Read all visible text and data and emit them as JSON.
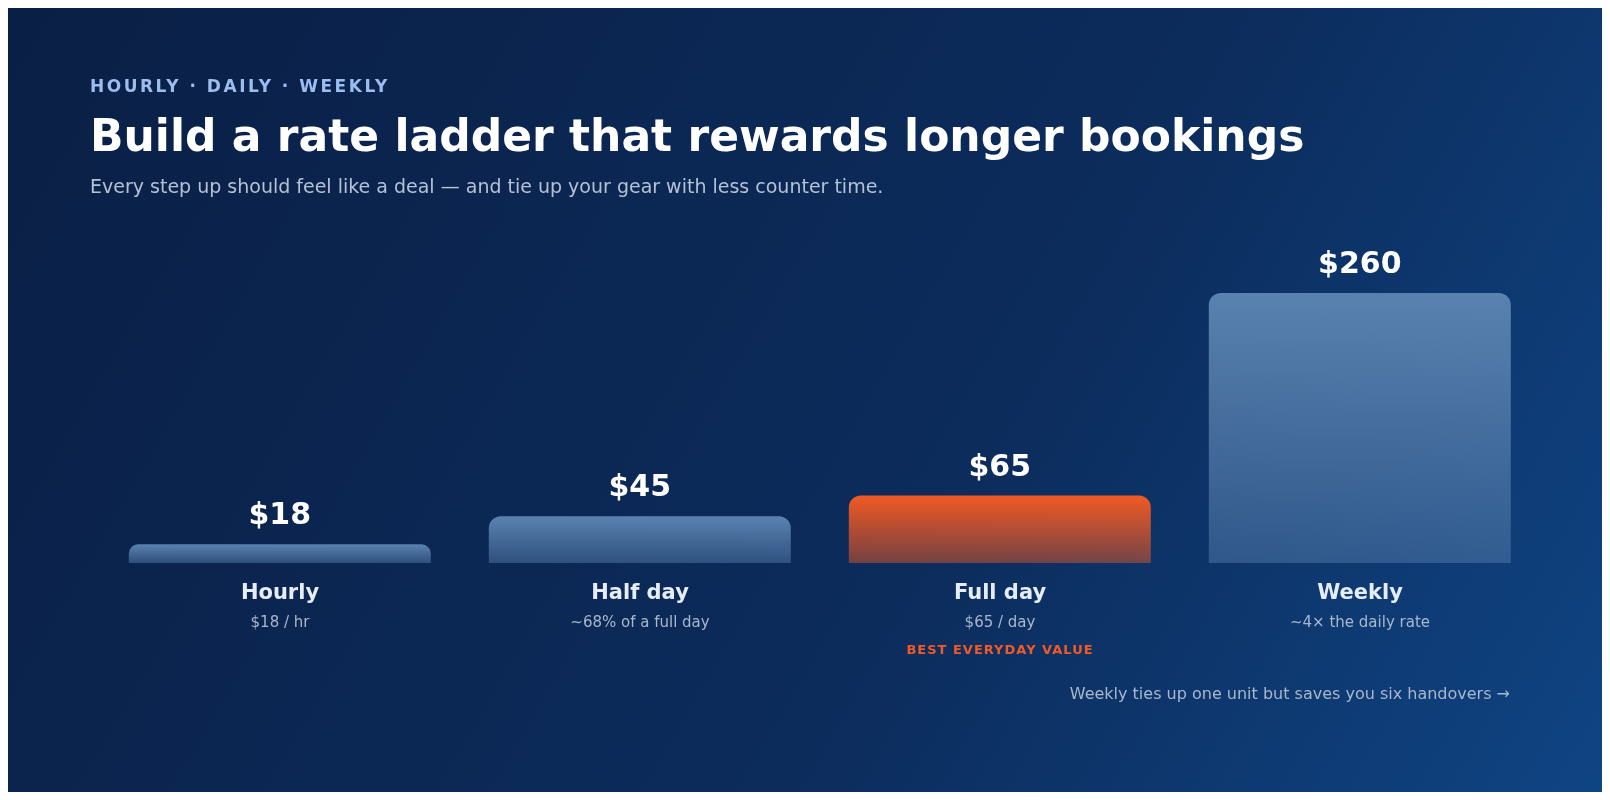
{
  "chart_data": {
    "type": "bar",
    "title": "Build a rate ladder that rewards longer bookings",
    "subtitle": "Every step up should feel like a deal — and tie up your gear with less counter time.",
    "categories": [
      "Hourly",
      "Half day",
      "Full day",
      "Weekly"
    ],
    "values": [
      18,
      45,
      65,
      260
    ],
    "value_labels": [
      "$18",
      "$45",
      "$65",
      "$260"
    ],
    "colors": [
      "#5a82b0",
      "#5a82b0",
      "#f15a24",
      "#5a82b0"
    ],
    "annotations": [
      "HOURLY · DAILY · WEEKLY",
      "$18 / hr",
      "~68% of a full day",
      "$65 / day",
      "BEST EVERYDAY VALUE",
      "~4× the daily rate",
      "Weekly ties up one unit but saves you six handovers →"
    ]
  }
}
